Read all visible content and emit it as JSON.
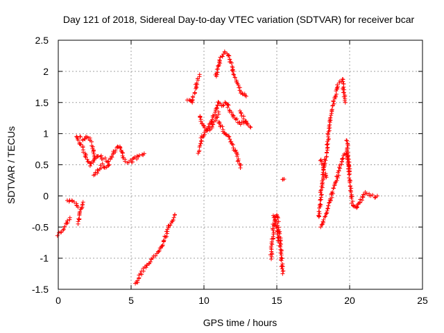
{
  "chart_data": {
    "type": "scatter",
    "title": "Day 121 of 2018, Sidereal Day-to-day VTEC variation (SDTVAR) for receiver bcar",
    "xlabel": "GPS time / hours",
    "ylabel": "SDTVAR / TECUs",
    "xlim": [
      0,
      25
    ],
    "ylim": [
      -1.5,
      2.5
    ],
    "xticks": [
      "0",
      "5",
      "10",
      "15",
      "20",
      "25"
    ],
    "yticks": [
      "2.5",
      "2",
      "1.5",
      "1",
      "0.5",
      "0",
      "-0.5",
      "-1",
      "-1.5"
    ],
    "grid": true,
    "marker": "+",
    "series": [
      {
        "name": "SDTVAR",
        "color": "#ff0000",
        "segments": [
          {
            "x": [
              0.0,
              0.3,
              0.6,
              0.8
            ],
            "y": [
              -0.62,
              -0.55,
              -0.42,
              -0.35
            ]
          },
          {
            "x": [
              0.6,
              0.9,
              1.2,
              1.35
            ],
            "y": [
              -0.07,
              -0.08,
              -0.12,
              -0.18
            ]
          },
          {
            "x": [
              1.35,
              1.5,
              1.7
            ],
            "y": [
              -0.45,
              -0.25,
              -0.1
            ]
          },
          {
            "x": [
              1.2,
              1.5,
              1.8,
              2.0,
              2.2,
              2.5,
              2.8,
              3.1,
              3.4,
              3.6,
              3.9,
              4.2,
              4.5,
              4.7,
              5.0,
              5.3,
              5.6,
              5.9
            ],
            "y": [
              0.95,
              0.85,
              0.7,
              0.55,
              0.5,
              0.6,
              0.65,
              0.6,
              0.55,
              0.6,
              0.75,
              0.8,
              0.6,
              0.55,
              0.55,
              0.6,
              0.65,
              0.68
            ]
          },
          {
            "x": [
              1.5,
              1.8,
              2.0,
              2.3,
              2.5
            ],
            "y": [
              0.95,
              0.9,
              0.95,
              0.85,
              0.6
            ]
          },
          {
            "x": [
              2.4,
              2.7,
              3.0,
              3.2,
              3.5
            ],
            "y": [
              0.35,
              0.4,
              0.5,
              0.45,
              0.5
            ]
          },
          {
            "x": [
              5.3,
              5.8,
              6.3,
              6.8,
              7.2,
              7.6,
              8.0
            ],
            "y": [
              -1.42,
              -1.2,
              -1.05,
              -0.92,
              -0.75,
              -0.5,
              -0.3
            ]
          },
          {
            "x": [
              8.9,
              9.2
            ],
            "y": [
              1.55,
              1.5
            ]
          },
          {
            "x": [
              9.2,
              9.4,
              9.6,
              9.7
            ],
            "y": [
              1.5,
              1.7,
              1.9,
              1.95
            ]
          },
          {
            "x": [
              9.6,
              9.8,
              10.0,
              10.3,
              10.6,
              10.9,
              11.0,
              11.2,
              11.5,
              11.8,
              12.1,
              12.5,
              12.9
            ],
            "y": [
              0.7,
              0.9,
              1.0,
              1.1,
              1.25,
              1.4,
              1.5,
              1.45,
              1.5,
              1.35,
              1.25,
              1.15,
              1.2
            ]
          },
          {
            "x": [
              9.7,
              9.9,
              10.2,
              10.5,
              10.8,
              11.0
            ],
            "y": [
              1.3,
              1.15,
              1.05,
              1.1,
              1.2,
              1.35
            ]
          },
          {
            "x": [
              10.8,
              11.1,
              11.4,
              11.7,
              12.0,
              12.3,
              12.6,
              12.9
            ],
            "y": [
              1.9,
              2.2,
              2.3,
              2.25,
              2.0,
              1.8,
              1.65,
              1.6
            ]
          },
          {
            "x": [
              11.0,
              11.3,
              11.7,
              12.0,
              12.3,
              12.5
            ],
            "y": [
              1.2,
              1.05,
              0.95,
              0.8,
              0.65,
              0.45
            ]
          },
          {
            "x": [
              12.5,
              12.8,
              13.0,
              13.2
            ],
            "y": [
              1.35,
              1.2,
              1.15,
              1.1
            ]
          },
          {
            "x": [
              14.6,
              14.8,
              15.0,
              15.2,
              15.4
            ],
            "y": [
              -1.0,
              -0.45,
              -0.3,
              -0.65,
              -1.25
            ]
          },
          {
            "x": [
              14.8,
              15.0,
              15.2
            ],
            "y": [
              -0.3,
              -0.55,
              -0.8
            ]
          },
          {
            "x": [
              15.4,
              15.5
            ],
            "y": [
              0.28,
              0.27
            ]
          },
          {
            "x": [
              17.9,
              18.1,
              18.4,
              18.6,
              18.8,
              19.0,
              19.2,
              19.5,
              19.7
            ],
            "y": [
              -0.35,
              0.2,
              0.7,
              1.1,
              1.4,
              1.6,
              1.8,
              1.88,
              1.5
            ]
          },
          {
            "x": [
              18.0,
              18.3,
              18.6,
              18.9,
              19.2,
              19.5,
              19.8,
              20.0
            ],
            "y": [
              -0.5,
              -0.35,
              -0.1,
              0.1,
              0.35,
              0.6,
              0.7,
              0.4
            ]
          },
          {
            "x": [
              18.0,
              18.2,
              18.4
            ],
            "y": [
              0.6,
              0.45,
              0.3
            ]
          },
          {
            "x": [
              19.8,
              20.0,
              20.2,
              20.5,
              20.8,
              21.1,
              21.4,
              21.7,
              21.9
            ],
            "y": [
              0.9,
              0.3,
              -0.15,
              -0.2,
              -0.05,
              0.05,
              0.02,
              -0.02,
              0.0
            ]
          }
        ]
      }
    ]
  }
}
